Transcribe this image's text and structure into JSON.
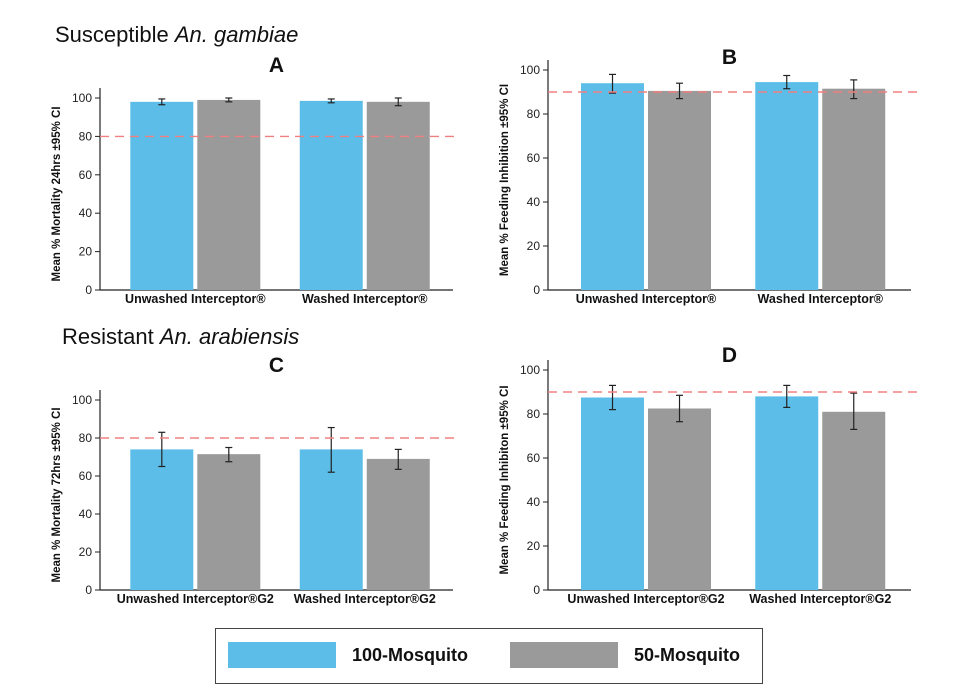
{
  "sections": [
    {
      "title_prefix": "Susceptible ",
      "title_species": "An. gambiae"
    },
    {
      "title_prefix": "Resistant ",
      "title_species": "An. arabiensis"
    }
  ],
  "legend": {
    "items": [
      {
        "label": "100-Mosquito",
        "color": "#5bbde8"
      },
      {
        "label": "50-Mosquito",
        "color": "#9a9a9a"
      }
    ]
  },
  "colors": {
    "threshold_line": "#f08080",
    "error_bar": "#222222"
  },
  "chart_data": [
    {
      "panel": "A",
      "type": "bar",
      "ylabel": "Mean % Mortality 24hrs ±95% CI",
      "categories": [
        "Unwashed Interceptor®",
        "Washed Interceptor®"
      ],
      "ylim": [
        0,
        100
      ],
      "yticks": [
        0,
        20,
        40,
        60,
        80,
        100
      ],
      "threshold": 80,
      "series": [
        {
          "name": "100-Mosquito",
          "values": [
            98,
            98.5
          ],
          "ci_low": [
            96.5,
            97.5
          ],
          "ci_high": [
            99.5,
            99.5
          ]
        },
        {
          "name": "50-Mosquito",
          "values": [
            99,
            98
          ],
          "ci_low": [
            98,
            96
          ],
          "ci_high": [
            100,
            100
          ]
        }
      ]
    },
    {
      "panel": "B",
      "type": "bar",
      "ylabel": "Mean % Feeding Inhibition ±95% CI",
      "categories": [
        "Unwashed Interceptor®",
        "Washed Interceptor®"
      ],
      "ylim": [
        0,
        100
      ],
      "yticks": [
        0,
        20,
        40,
        60,
        80,
        100
      ],
      "threshold": 90,
      "series": [
        {
          "name": "100-Mosquito",
          "values": [
            94,
            94.5
          ],
          "ci_low": [
            89.5,
            91.5
          ],
          "ci_high": [
            98,
            97.5
          ]
        },
        {
          "name": "50-Mosquito",
          "values": [
            90.5,
            91.5
          ],
          "ci_low": [
            87,
            87
          ],
          "ci_high": [
            94,
            95.5
          ]
        }
      ]
    },
    {
      "panel": "C",
      "type": "bar",
      "ylabel": "Mean % Mortality 72hrs ±95% CI",
      "categories": [
        "Unwashed Interceptor®G2",
        "Washed Interceptor®G2"
      ],
      "ylim": [
        0,
        100
      ],
      "yticks": [
        0,
        20,
        40,
        60,
        80,
        100
      ],
      "threshold": 80,
      "series": [
        {
          "name": "100-Mosquito",
          "values": [
            74,
            74
          ],
          "ci_low": [
            65,
            62
          ],
          "ci_high": [
            83,
            85.5
          ]
        },
        {
          "name": "50-Mosquito",
          "values": [
            71.5,
            69
          ],
          "ci_low": [
            67.5,
            63.5
          ],
          "ci_high": [
            75,
            74
          ]
        }
      ]
    },
    {
      "panel": "D",
      "type": "bar",
      "ylabel": "Mean % Feeding Inhibiton ±95% CI",
      "categories": [
        "Unwashed Interceptor®G2",
        "Washed Interceptor®G2"
      ],
      "ylim": [
        0,
        100
      ],
      "yticks": [
        0,
        20,
        40,
        60,
        80,
        100
      ],
      "threshold": 90,
      "series": [
        {
          "name": "100-Mosquito",
          "values": [
            87.5,
            88
          ],
          "ci_low": [
            82,
            83
          ],
          "ci_high": [
            93,
            93
          ]
        },
        {
          "name": "50-Mosquito",
          "values": [
            82.5,
            81
          ],
          "ci_low": [
            76.5,
            73
          ],
          "ci_high": [
            88.5,
            89.5
          ]
        }
      ]
    }
  ]
}
